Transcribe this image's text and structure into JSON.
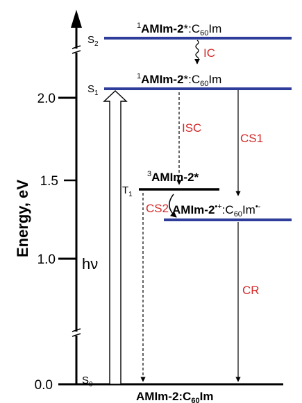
{
  "axis": {
    "title": "Energy, eV",
    "ticks": [
      {
        "label": "2.0",
        "value": 2.0
      },
      {
        "label": "1.5",
        "value": 1.5
      },
      {
        "label": "1.0",
        "value": 1.0
      },
      {
        "label": "0.0",
        "value": 0.0
      }
    ]
  },
  "states": {
    "s2": "S",
    "s2_sub": "2",
    "s1": "S",
    "s1_sub": "1",
    "t1": "T",
    "t1_sub": "1",
    "s0": "S",
    "s0_sub": "0"
  },
  "levels": {
    "s2_label": {
      "sup": "1",
      "main": "AMIm-2",
      "star": "*",
      "rest": ":C",
      "sub": "60",
      "end": "Im"
    },
    "s1_label": {
      "sup": "1",
      "main": "AMIm-2",
      "star": "*",
      "rest": ":C",
      "sub": "60",
      "end": "Im"
    },
    "t1_label": {
      "sup": "3",
      "main": "AMIm-2*"
    },
    "cs_label": {
      "main": "AMIm-2",
      "sup": "•+",
      "rest": ":C",
      "sub": "60",
      "end": "Im",
      "sup2": "•-"
    },
    "ground_label": {
      "main": "AMIm-2:C",
      "sub": "60",
      "end": "Im"
    }
  },
  "processes": {
    "ic": "IC",
    "isc": "ISC",
    "cs1": "CS1",
    "cs2": "CS2",
    "cr": "CR",
    "hv": "hν"
  },
  "colors": {
    "level_blue": "#2e3d9a",
    "process_red": "#d42a2a",
    "axis": "#000000"
  }
}
